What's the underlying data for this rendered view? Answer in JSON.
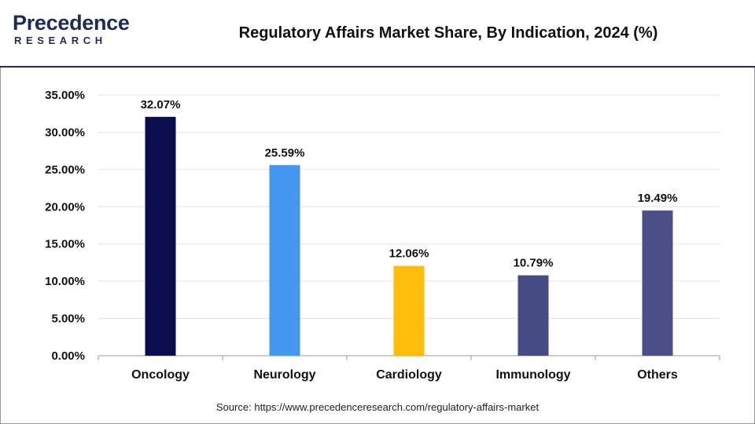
{
  "brand": {
    "name": "Precedence",
    "sub": "RESEARCH",
    "accent": "#1f2a5c",
    "accent_secondary": "#2f6fd6"
  },
  "header": {
    "title": "Regulatory Affairs Market Share, By Indication, 2024 (%)"
  },
  "footer": {
    "source": "Source: https://www.precedenceresearch.com/regulatory-affairs-market"
  },
  "chart_data": {
    "type": "bar",
    "title": "Regulatory Affairs Market Share, By Indication, 2024 (%)",
    "xlabel": "",
    "ylabel": "",
    "categories": [
      "Oncology",
      "Neurology",
      "Cardiology",
      "Immunology",
      "Others"
    ],
    "values": [
      32.07,
      25.59,
      12.06,
      10.79,
      19.49
    ],
    "value_labels": [
      "32.07%",
      "25.59%",
      "12.06%",
      "10.79%",
      "19.49%"
    ],
    "colors": [
      "#0b0d4f",
      "#4596ee",
      "#fdbd0a",
      "#454b84",
      "#4c4f87"
    ],
    "ylim": [
      0,
      35
    ],
    "yticks": [
      0,
      5,
      10,
      15,
      20,
      25,
      30,
      35
    ],
    "ytick_labels": [
      "0.00%",
      "5.00%",
      "10.00%",
      "15.00%",
      "20.00%",
      "25.00%",
      "30.00%",
      "35.00%"
    ],
    "grid": true,
    "legend": "none"
  }
}
